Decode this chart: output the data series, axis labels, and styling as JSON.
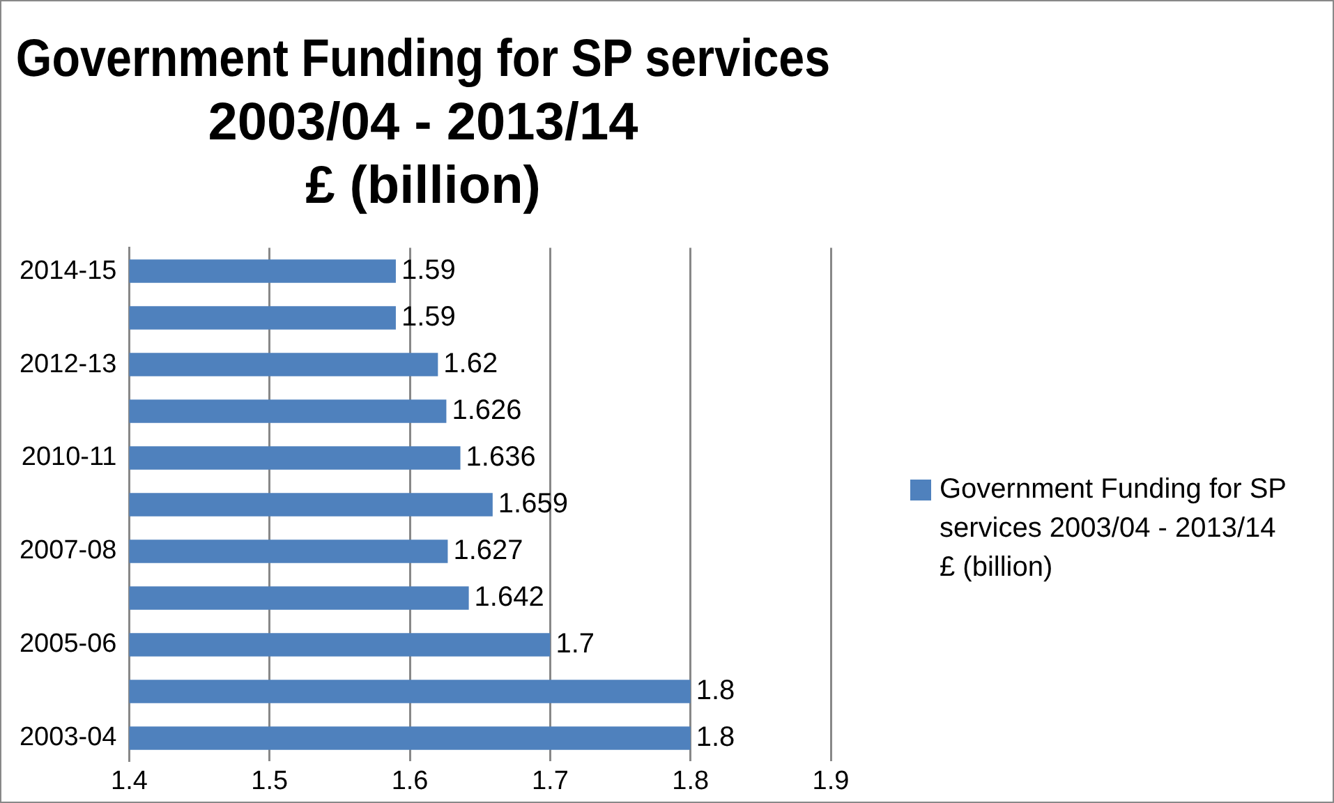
{
  "chart_data": {
    "type": "bar",
    "orientation": "horizontal",
    "title": "Government Funding for SP services\n2003/04 - 2013/14\n£ (billion)",
    "categories": [
      "2014-15",
      null,
      "2012-13",
      null,
      "2010-11",
      null,
      "2007-08",
      null,
      "2005-06",
      null,
      "2003-04"
    ],
    "series": [
      {
        "name": "Government Funding for SP services 2003/04 - 2013/14\n£ (billion)",
        "color": "#4f81bd",
        "values": [
          1.59,
          1.59,
          1.62,
          1.626,
          1.636,
          1.659,
          1.627,
          1.642,
          1.7,
          1.8,
          1.8
        ]
      }
    ],
    "xlim": [
      1.4,
      1.9
    ],
    "xticks": [
      1.4,
      1.5,
      1.6,
      1.7,
      1.8,
      1.9
    ],
    "grid": "x",
    "legend": "right",
    "data_labels": true
  }
}
